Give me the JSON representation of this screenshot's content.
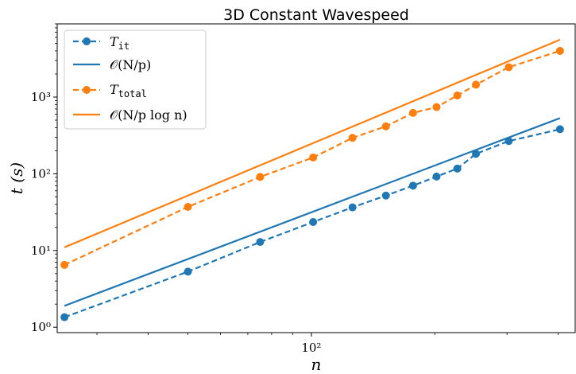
{
  "chart_data": {
    "type": "line",
    "title": "3D Constant Wavespeed",
    "xlabel": "n",
    "ylabel": "t (s)",
    "xscale": "log",
    "yscale": "log",
    "xlim": [
      24,
      440
    ],
    "ylim": [
      0.85,
      9000
    ],
    "x_major_ticks": [
      {
        "value": 100,
        "label": "10²"
      }
    ],
    "y_major_ticks": [
      {
        "value": 1,
        "label": "10⁰"
      },
      {
        "value": 10,
        "label": "10¹"
      },
      {
        "value": 100,
        "label": "10²"
      },
      {
        "value": 1000,
        "label": "10³"
      }
    ],
    "grid": false,
    "legend_position": "upper-left",
    "series": [
      {
        "name": "T_it",
        "style": "dashed-markers",
        "color": "#1f77b4",
        "x": [
          25,
          50,
          75,
          101,
          126,
          152,
          177,
          202,
          227,
          252,
          303,
          404
        ],
        "y": [
          1.35,
          5.3,
          12.9,
          23.5,
          36.5,
          52,
          70,
          92,
          117,
          182,
          267,
          381
        ]
      },
      {
        "name": "O(N/p)",
        "style": "solid",
        "color": "#1f77b4",
        "x": [
          25,
          404
        ],
        "y": [
          1.9,
          532
        ]
      },
      {
        "name": "T_total",
        "style": "dashed-markers",
        "color": "#ff7f0e",
        "x": [
          25,
          50,
          75,
          101,
          126,
          152,
          177,
          202,
          227,
          252,
          303,
          404
        ],
        "y": [
          6.5,
          37,
          91,
          163,
          294,
          415,
          622,
          740,
          1050,
          1450,
          2450,
          4000
        ]
      },
      {
        "name": "O(N/p log n)",
        "style": "solid",
        "color": "#ff7f0e",
        "x": [
          25,
          404
        ],
        "y": [
          11,
          5600
        ]
      }
    ]
  },
  "legend": {
    "entries": [
      {
        "main": "T",
        "sub": "it"
      },
      {
        "main": "𝒪(N/p)",
        "sub": ""
      },
      {
        "main": "T",
        "sub": "total"
      },
      {
        "main": "𝒪(N/p log n)",
        "sub": ""
      }
    ]
  }
}
